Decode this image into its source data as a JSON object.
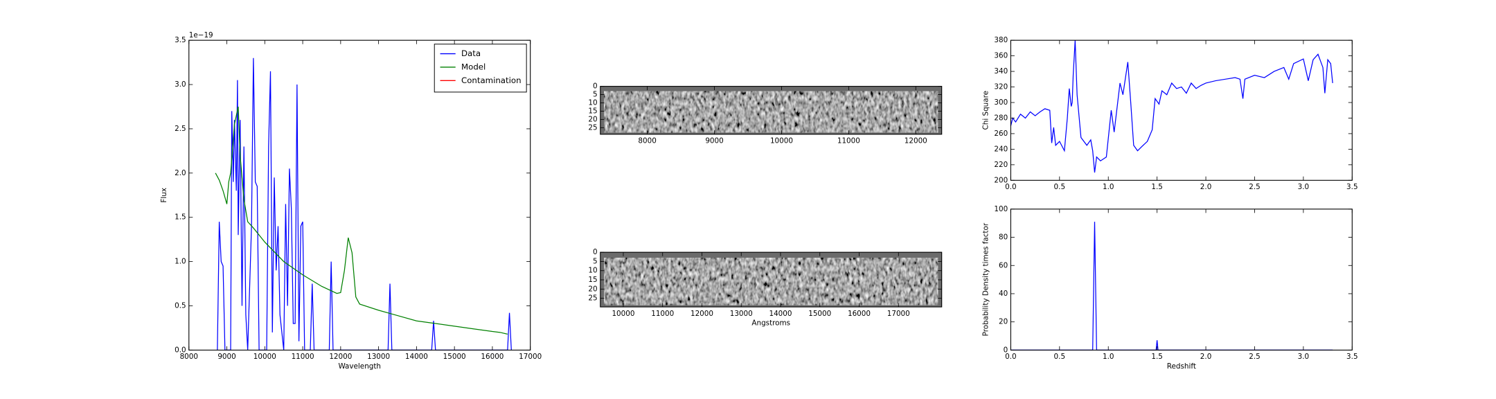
{
  "chart_data": [
    {
      "type": "line",
      "xlabel": "Wavelength",
      "ylabel": "Flux",
      "offset_text": "1e−19",
      "xlim": [
        8000,
        17000
      ],
      "ylim": [
        0,
        3.5
      ],
      "xticks": [
        8000,
        9000,
        10000,
        11000,
        12000,
        13000,
        14000,
        15000,
        16000,
        17000
      ],
      "yticks": [
        {
          "value": 0,
          "label": "0.0"
        },
        {
          "value": 0.5,
          "label": "0.5"
        },
        {
          "value": 1,
          "label": "1.0"
        },
        {
          "value": 1.5,
          "label": "1.5"
        },
        {
          "value": 2,
          "label": "2.0"
        },
        {
          "value": 2.5,
          "label": "2.5"
        },
        {
          "value": 3,
          "label": "3.0"
        },
        {
          "value": 3.5,
          "label": "3.5"
        }
      ],
      "legend": "upper right",
      "series": [
        {
          "name": "Data",
          "color": "#0000ff",
          "x": [
            8750,
            8800,
            8850,
            8900,
            8950,
            9100,
            9130,
            9170,
            9200,
            9250,
            9280,
            9300,
            9350,
            9400,
            9450,
            9500,
            9550,
            9650,
            9700,
            9750,
            9800,
            9850,
            10050,
            10100,
            10150,
            10200,
            10250,
            10300,
            10350,
            10400,
            10500,
            10550,
            10600,
            10650,
            10700,
            10750,
            10800,
            10850,
            10900,
            10950,
            11000,
            11050,
            11200,
            11250,
            11300,
            11700,
            11750,
            11800,
            13250,
            13300,
            13350,
            14400,
            14450,
            14500,
            16400,
            16450,
            16500
          ],
          "values": [
            0,
            1.45,
            1.0,
            0.95,
            0,
            0,
            2.7,
            1.9,
            2.6,
            1.8,
            3.05,
            1.3,
            2.6,
            0.5,
            2.3,
            0.4,
            0,
            1.4,
            3.3,
            1.9,
            1.85,
            0,
            0,
            2.3,
            3.15,
            0.2,
            1.95,
            0.9,
            1.4,
            0.4,
            0,
            1.65,
            0.5,
            2.05,
            1.6,
            0.3,
            0.3,
            3.0,
            0.1,
            1.4,
            1.45,
            0,
            0,
            0.75,
            0,
            0,
            1.0,
            0,
            0,
            0.75,
            0,
            0,
            0.33,
            0,
            0,
            0.42,
            0
          ]
        },
        {
          "name": "Model",
          "color": "#008000",
          "x": [
            8700,
            8800,
            8900,
            9000,
            9050,
            9100,
            9200,
            9300,
            9350,
            9450,
            9550,
            9700,
            10000,
            10500,
            11000,
            11500,
            11900,
            12000,
            12100,
            12200,
            12300,
            12400,
            12500,
            13000,
            13500,
            14000,
            14500,
            15000,
            15500,
            16000,
            16200,
            16400
          ],
          "values": [
            2.0,
            1.92,
            1.8,
            1.65,
            1.9,
            2.0,
            2.55,
            2.75,
            2.2,
            1.7,
            1.45,
            1.38,
            1.22,
            1.0,
            0.85,
            0.72,
            0.64,
            0.65,
            0.9,
            1.27,
            1.1,
            0.6,
            0.52,
            0.45,
            0.39,
            0.33,
            0.3,
            0.27,
            0.24,
            0.21,
            0.2,
            0.18
          ]
        },
        {
          "name": "Contamination",
          "color": "#ff0000",
          "x": [],
          "values": []
        }
      ]
    },
    {
      "type": "image",
      "xlim": [
        7300,
        12386
      ],
      "ylim": [
        29,
        0
      ],
      "xticks": [
        8000,
        9000,
        10000,
        11000,
        12000
      ],
      "yticks": [
        0,
        5,
        10,
        15,
        20,
        25
      ]
    },
    {
      "type": "image",
      "xlabel": "Angstroms",
      "xlim": [
        9415,
        18100
      ],
      "ylim": [
        29.7,
        0
      ],
      "xticks": [
        10000,
        11000,
        12000,
        13000,
        14000,
        15000,
        16000,
        17000
      ],
      "yticks": [
        0,
        5,
        10,
        15,
        20,
        25
      ]
    },
    {
      "type": "line",
      "ylabel": "Chi Square",
      "xlim": [
        0,
        3.5
      ],
      "ylim": [
        200,
        380
      ],
      "xticks": [
        {
          "value": 0,
          "label": "0.0"
        },
        {
          "value": 0.5,
          "label": "0.5"
        },
        {
          "value": 1,
          "label": "1.0"
        },
        {
          "value": 1.5,
          "label": "1.5"
        },
        {
          "value": 2,
          "label": "2.0"
        },
        {
          "value": 2.5,
          "label": "2.5"
        },
        {
          "value": 3,
          "label": "3.0"
        },
        {
          "value": 3.5,
          "label": "3.5"
        }
      ],
      "yticks": [
        200,
        220,
        240,
        260,
        280,
        300,
        320,
        340,
        360,
        380
      ],
      "series": [
        {
          "color": "#0000ff",
          "x": [
            0,
            0.02,
            0.05,
            0.1,
            0.15,
            0.2,
            0.25,
            0.3,
            0.35,
            0.4,
            0.42,
            0.44,
            0.46,
            0.5,
            0.55,
            0.58,
            0.6,
            0.62,
            0.63,
            0.64,
            0.66,
            0.68,
            0.72,
            0.78,
            0.82,
            0.84,
            0.86,
            0.88,
            0.92,
            0.98,
            1.03,
            1.06,
            1.12,
            1.15,
            1.2,
            1.23,
            1.26,
            1.3,
            1.34,
            1.4,
            1.45,
            1.48,
            1.52,
            1.55,
            1.6,
            1.65,
            1.7,
            1.75,
            1.8,
            1.85,
            1.9,
            1.95,
            2.0,
            2.1,
            2.2,
            2.3,
            2.35,
            2.38,
            2.4,
            2.5,
            2.6,
            2.7,
            2.8,
            2.85,
            2.9,
            3.0,
            3.05,
            3.1,
            3.15,
            3.2,
            3.22,
            3.25,
            3.28,
            3.3
          ],
          "values": [
            270,
            280,
            275,
            285,
            280,
            288,
            283,
            288,
            292,
            290,
            248,
            268,
            245,
            250,
            238,
            280,
            318,
            295,
            300,
            335,
            380,
            310,
            255,
            245,
            252,
            238,
            210,
            230,
            225,
            230,
            290,
            262,
            325,
            310,
            352,
            300,
            245,
            238,
            243,
            250,
            265,
            305,
            298,
            315,
            310,
            325,
            318,
            320,
            312,
            325,
            318,
            322,
            325,
            328,
            330,
            332,
            330,
            305,
            330,
            335,
            332,
            340,
            345,
            330,
            350,
            356,
            328,
            355,
            362,
            345,
            312,
            355,
            350,
            325
          ]
        }
      ]
    },
    {
      "type": "line",
      "xlabel": "Redshift",
      "ylabel": "Probability Density times factor",
      "xlim": [
        0,
        3.5
      ],
      "ylim": [
        0,
        100
      ],
      "xticks": [
        {
          "value": 0,
          "label": "0.0"
        },
        {
          "value": 0.5,
          "label": "0.5"
        },
        {
          "value": 1,
          "label": "1.0"
        },
        {
          "value": 1.5,
          "label": "1.5"
        },
        {
          "value": 2,
          "label": "2.0"
        },
        {
          "value": 2.5,
          "label": "2.5"
        },
        {
          "value": 3,
          "label": "3.0"
        },
        {
          "value": 3.5,
          "label": "3.5"
        }
      ],
      "yticks": [
        0,
        20,
        40,
        60,
        80,
        100
      ],
      "series": [
        {
          "color": "#0000ff",
          "x": [
            0,
            0.84,
            0.86,
            0.88,
            1.49,
            1.5,
            1.51,
            3.3
          ],
          "values": [
            0,
            0,
            91,
            0,
            0,
            7,
            0,
            0
          ]
        }
      ]
    }
  ]
}
